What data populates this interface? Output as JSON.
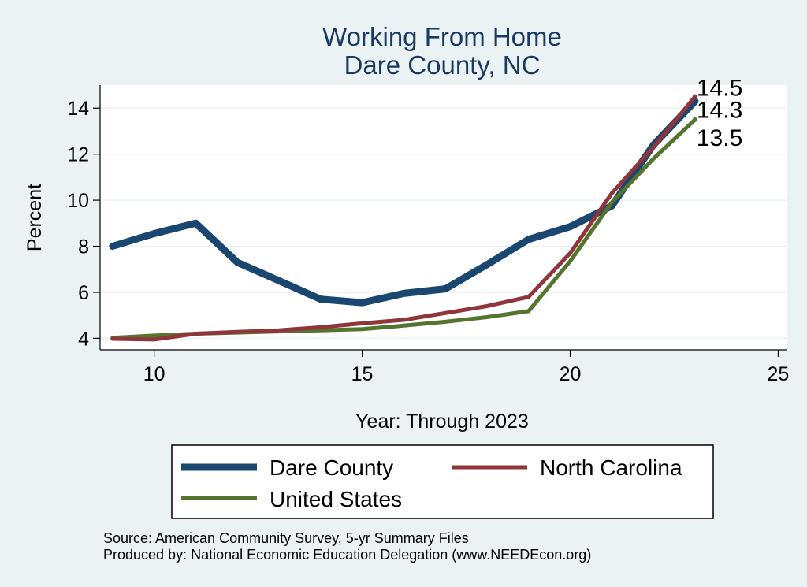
{
  "chart_data": {
    "type": "line",
    "title": [
      "Working From Home",
      "Dare County, NC"
    ],
    "xlabel": "Year: Through 2023",
    "ylabel": "Percent",
    "xlim": [
      8.7,
      25.2
    ],
    "ylim": [
      3.5,
      15.0
    ],
    "xticks": [
      10,
      15,
      20,
      25
    ],
    "yticks": [
      4,
      6,
      8,
      10,
      12,
      14
    ],
    "grid": true,
    "legend_position": "bottom",
    "series": [
      {
        "name": "Dare County",
        "color": "#1a476f",
        "width": "thick",
        "x": [
          9,
          10,
          11,
          12,
          13,
          14,
          15,
          16,
          17,
          18,
          19,
          20,
          21,
          22,
          23
        ],
        "y": [
          8.0,
          8.55,
          9.0,
          7.3,
          6.5,
          5.7,
          5.55,
          5.95,
          6.15,
          7.2,
          8.3,
          8.85,
          9.75,
          12.4,
          14.3
        ],
        "end_label": "14.3"
      },
      {
        "name": "North Carolina",
        "color": "#90353b",
        "width": "medium",
        "x": [
          9,
          10,
          11,
          12,
          13,
          14,
          15,
          16,
          17,
          18,
          19,
          20,
          21,
          22,
          23
        ],
        "y": [
          3.98,
          3.95,
          4.2,
          4.28,
          4.35,
          4.48,
          4.65,
          4.8,
          5.1,
          5.4,
          5.8,
          7.7,
          10.3,
          12.3,
          14.5
        ],
        "end_label": "14.5"
      },
      {
        "name": "United States",
        "color": "#55752f",
        "width": "medium",
        "x": [
          9,
          10,
          11,
          12,
          13,
          14,
          15,
          16,
          17,
          18,
          19,
          20,
          21,
          22,
          23
        ],
        "y": [
          4.02,
          4.12,
          4.2,
          4.25,
          4.3,
          4.35,
          4.4,
          4.55,
          4.72,
          4.92,
          5.18,
          7.35,
          9.9,
          11.8,
          13.5
        ],
        "end_label": "13.5"
      }
    ],
    "notes": [
      "Source: American Community Survey, 5-yr Summary Files",
      "Produced by: National Economic Education Delegation (www.NEEDEcon.org)"
    ]
  }
}
